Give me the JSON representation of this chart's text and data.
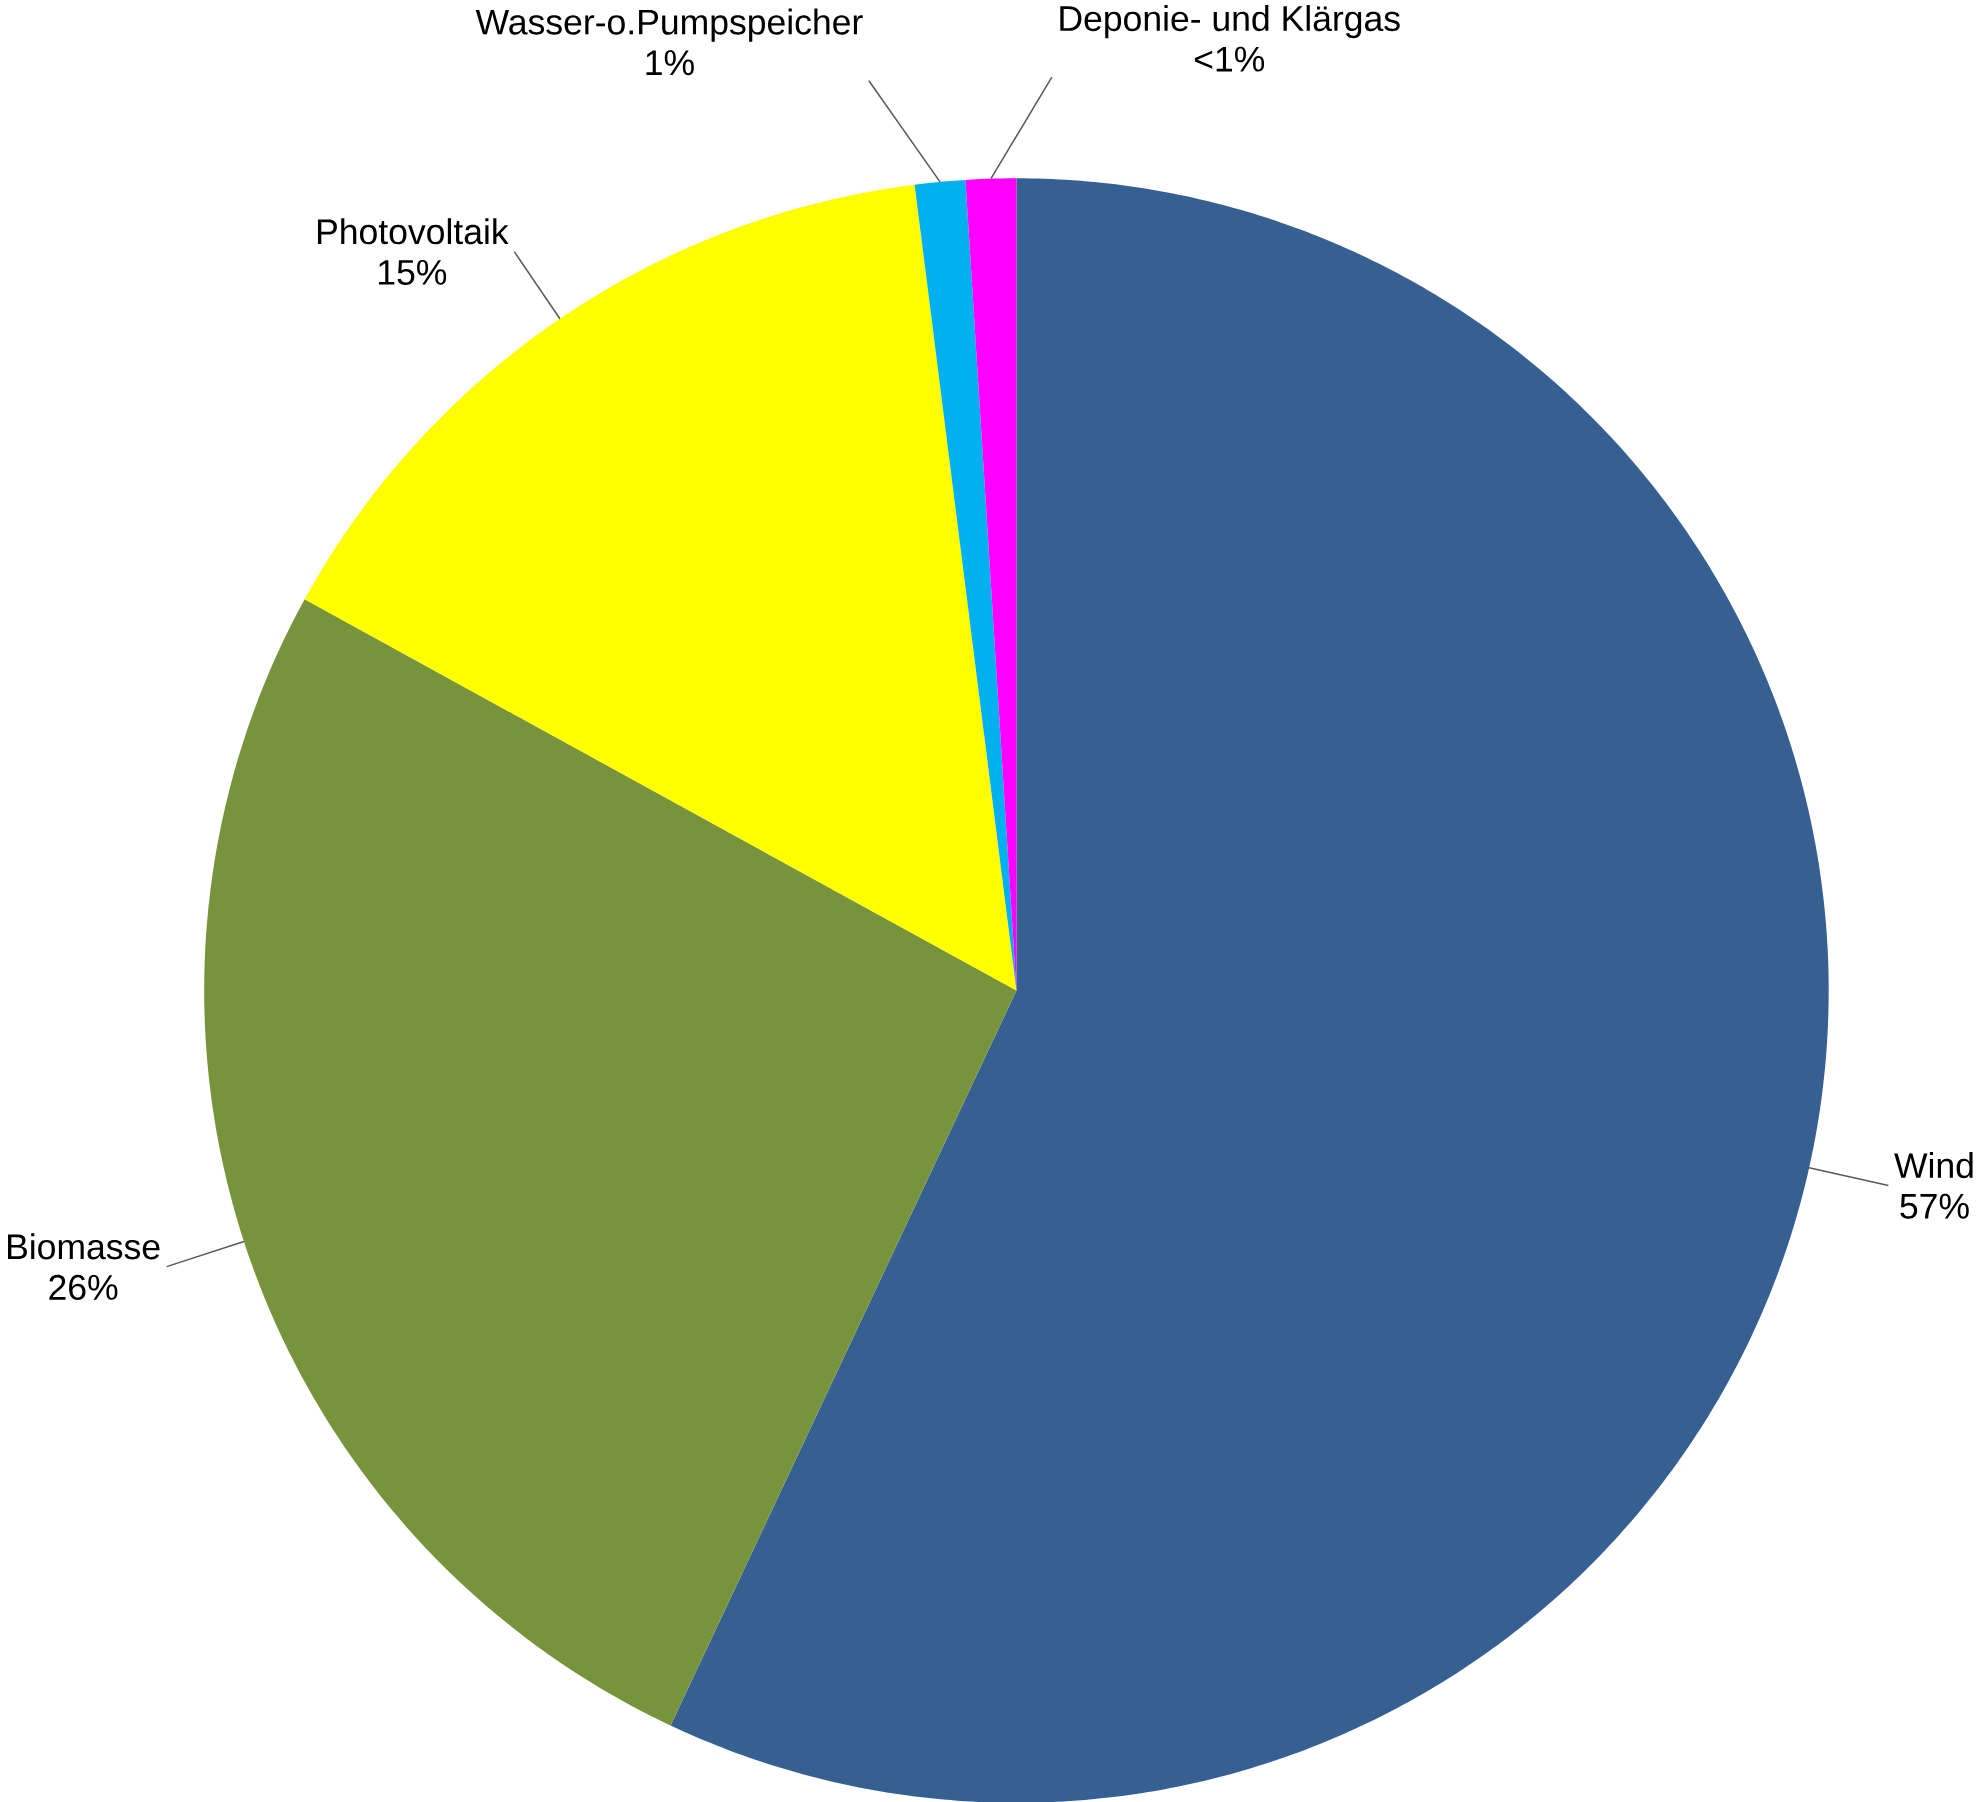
{
  "chart_data": {
    "type": "pie",
    "categories": [
      "Wind",
      "Biomasse",
      "Photovoltaik",
      "Wasser-o.Pumpspeicher",
      "Deponie- und Klärgas"
    ],
    "values": [
      57,
      26,
      15,
      1,
      1
    ],
    "value_labels": [
      "57%",
      "26%",
      "15%",
      "1%",
      "<1%"
    ],
    "colors": [
      "#376092",
      "#77933c",
      "#ffff00",
      "#00b0f0",
      "#ff00ff"
    ]
  }
}
